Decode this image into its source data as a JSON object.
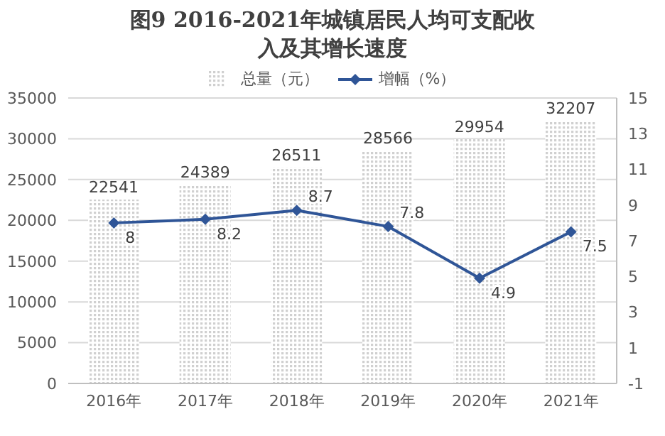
{
  "chart_data": {
    "type": "bar",
    "title": "图9 2016-2021年城镇居民人均可支配收入及其增长速度",
    "categories": [
      "2016年",
      "2017年",
      "2018年",
      "2019年",
      "2020年",
      "2021年"
    ],
    "series": [
      {
        "name": "总量（元）",
        "color": "#d0d0d0",
        "values": [
          22541,
          24389,
          26511,
          28566,
          29954,
          32207
        ]
      },
      {
        "name": "增幅（%）",
        "type": "line",
        "axis": "y2",
        "color": "#2f5597",
        "values": [
          8,
          8.2,
          8.7,
          7.8,
          4.9,
          7.5
        ]
      }
    ],
    "ylim": [
      0,
      35000
    ],
    "yticks": [
      0,
      5000,
      10000,
      15000,
      20000,
      25000,
      30000,
      35000
    ],
    "y2lim": [
      -1,
      15
    ],
    "y2ticks": [
      -1,
      1,
      3,
      5,
      7,
      9,
      11,
      13,
      15
    ],
    "grid": "y",
    "legend": "top",
    "marker": "diamond",
    "data_labels": true
  }
}
